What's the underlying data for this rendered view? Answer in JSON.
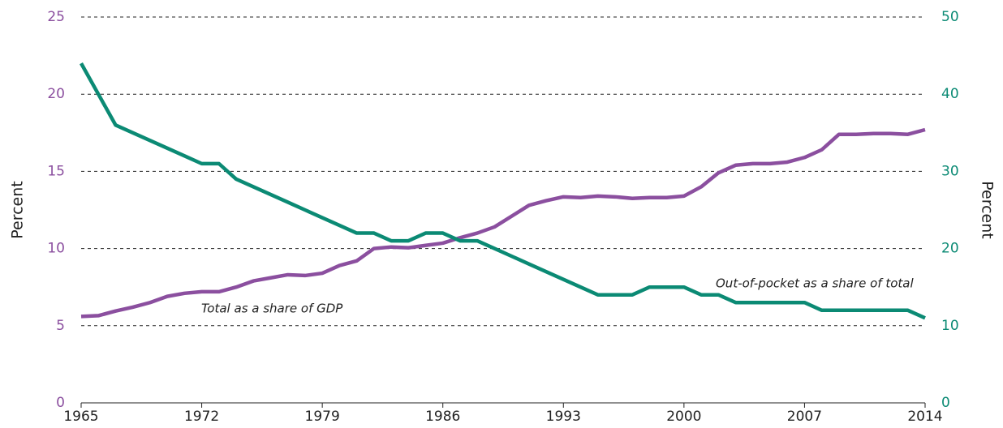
{
  "chart_data": {
    "type": "line",
    "x": [
      1965,
      1966,
      1967,
      1968,
      1969,
      1970,
      1971,
      1972,
      1973,
      1974,
      1975,
      1976,
      1977,
      1978,
      1979,
      1980,
      1981,
      1982,
      1983,
      1984,
      1985,
      1986,
      1987,
      1988,
      1989,
      1990,
      1991,
      1992,
      1993,
      1994,
      1995,
      1996,
      1997,
      1998,
      1999,
      2000,
      2001,
      2002,
      2003,
      2004,
      2005,
      2006,
      2007,
      2008,
      2009,
      2010,
      2011,
      2012,
      2013,
      2014
    ],
    "xlim": [
      1965,
      2014
    ],
    "xticks": [
      1965,
      1972,
      1979,
      1986,
      1993,
      2000,
      2007,
      2014
    ],
    "ylabel": "Percent",
    "y2label": "Percent",
    "ylim": [
      0,
      25
    ],
    "yticks": [
      0,
      5,
      10,
      15,
      20,
      25
    ],
    "y2lim": [
      0,
      50
    ],
    "y2ticks": [
      0,
      10,
      20,
      30,
      40,
      50
    ],
    "grid": true,
    "series": [
      {
        "name": "Total as a share of GDP",
        "color": "#8b4f9f",
        "axis": "y",
        "values": [
          5.6,
          5.65,
          5.95,
          6.2,
          6.5,
          6.9,
          7.1,
          7.2,
          7.2,
          7.5,
          7.9,
          8.1,
          8.3,
          8.25,
          8.4,
          8.9,
          9.2,
          10.0,
          10.1,
          10.05,
          10.2,
          10.35,
          10.7,
          11.0,
          11.4,
          12.1,
          12.8,
          13.1,
          13.35,
          13.3,
          13.4,
          13.35,
          13.25,
          13.3,
          13.3,
          13.4,
          14.0,
          14.9,
          15.4,
          15.5,
          15.5,
          15.6,
          15.9,
          16.4,
          17.4,
          17.4,
          17.45,
          17.45,
          17.4,
          17.7
        ]
      },
      {
        "name": "Out-of-pocket as a share of total",
        "color": "#0b8a74",
        "axis": "y2",
        "values": [
          44,
          40,
          36,
          35,
          34,
          33,
          32,
          31,
          31,
          29,
          28,
          27,
          26,
          25,
          24,
          23,
          22,
          22,
          21,
          21,
          22,
          22,
          21,
          21,
          20,
          19,
          18,
          17,
          16,
          15,
          14,
          14,
          14,
          15,
          15,
          15,
          14,
          14,
          13,
          13,
          13,
          13,
          13,
          12,
          12,
          12,
          12,
          12,
          12,
          11
        ]
      }
    ]
  }
}
